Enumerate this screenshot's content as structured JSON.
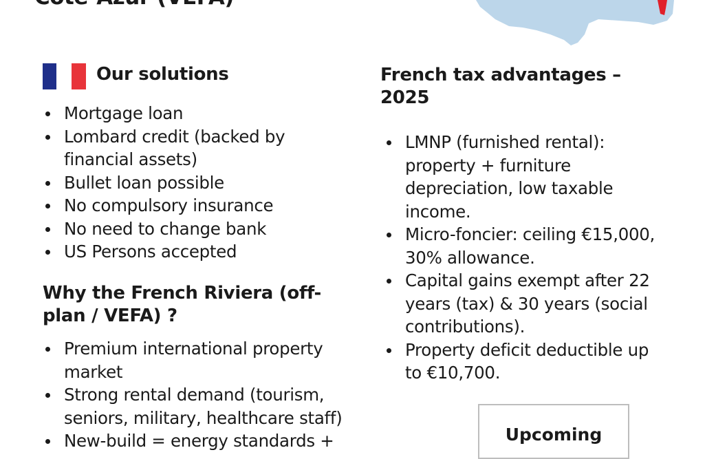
{
  "header": {
    "title": "Côte-Azur (VEFA)"
  },
  "colors": {
    "map_fill": "#bcd6ea",
    "map_highlight": "#e0202a",
    "flag_blue": "#1f2f8a",
    "flag_red": "#e8343a"
  },
  "solutions": {
    "heading": "Our solutions",
    "items": [
      "Mortgage loan",
      "Lombard credit (backed by financial assets)",
      "Bullet loan possible",
      "No compulsory insurance",
      "No need to change bank",
      "US Persons accepted"
    ]
  },
  "why": {
    "heading": "Why the French Riviera (off-plan / VEFA) ?",
    "items": [
      "Premium international property market",
      "Strong rental demand (tourism, seniors, military, healthcare staff)",
      "New-build = energy standards +"
    ]
  },
  "tax": {
    "heading": "French tax advantages – 2025",
    "items": [
      "LMNP (furnished rental): property + furniture depreciation, low taxable income.",
      "Micro-foncier: ceiling €15,000, 30% allowance.",
      "Capital gains exempt after 22 years (tax) & 30 years (social contributions).",
      "Property deficit deductible up to €10,700."
    ]
  },
  "upcoming": {
    "label": "Upcoming"
  }
}
